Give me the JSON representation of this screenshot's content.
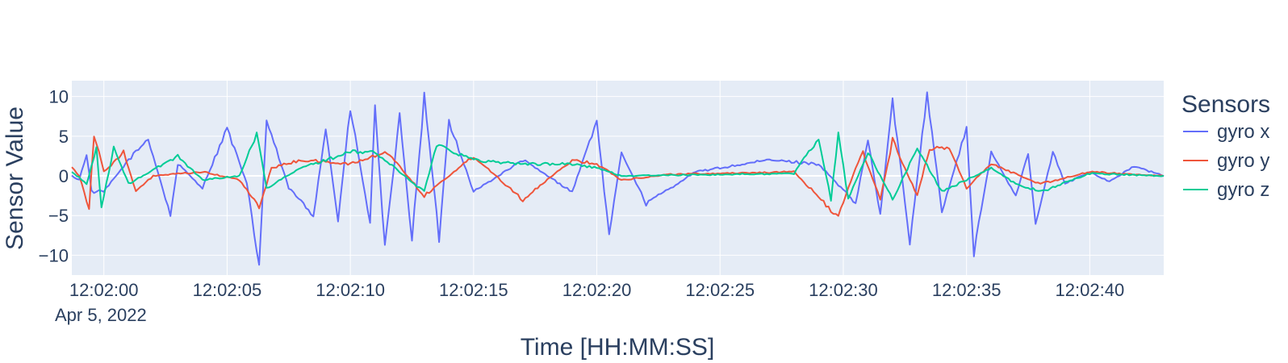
{
  "chart_data": {
    "type": "line",
    "xlabel": "Time [HH:MM:SS]",
    "ylabel": "Sensor Value",
    "date_label": "Apr 5, 2022",
    "x_ticks": [
      "12:02:00",
      "12:02:05",
      "12:02:10",
      "12:02:15",
      "12:02:20",
      "12:02:25",
      "12:02:30",
      "12:02:35",
      "12:02:40"
    ],
    "y_ticks": [
      "10",
      "5",
      "0",
      "−5",
      "−10"
    ],
    "xlim": [
      "12:01:58.7",
      "12:02:43"
    ],
    "ylim": [
      -12.5,
      12
    ],
    "grid": true,
    "legend": {
      "title": "Sensors",
      "position": "right"
    },
    "colors": {
      "gyro x": "#636efa",
      "gyro y": "#ef553b",
      "gyro z": "#00cc96",
      "plot_bg": "#e5ecf6"
    },
    "sample_interval_s": 0.1,
    "series": [
      {
        "name": "gyro x",
        "keypoints": [
          [
            "12:01:58.7",
            0.0
          ],
          [
            "12:01:59.0",
            -0.5
          ],
          [
            "12:01:59.3",
            2.8
          ],
          [
            "12:01:59.5",
            -2.0
          ],
          [
            "12:02:00.0",
            -2.0
          ],
          [
            "12:02:01.0",
            2.0
          ],
          [
            "12:02:01.8",
            4.7
          ],
          [
            "12:02:02.7",
            -5.0
          ],
          [
            "12:02:03.0",
            1.5
          ],
          [
            "12:02:04.0",
            -1.5
          ],
          [
            "12:02:05.0",
            6.0
          ],
          [
            "12:02:05.8",
            -1.0
          ],
          [
            "12:02:06.3",
            -11.3
          ],
          [
            "12:02:06.6",
            7.0
          ],
          [
            "12:02:07.5",
            -1.5
          ],
          [
            "12:02:08.5",
            -5.0
          ],
          [
            "12:02:09.0",
            6.0
          ],
          [
            "12:02:09.5",
            -5.6
          ],
          [
            "12:02:10.0",
            8.5
          ],
          [
            "12:02:10.8",
            -6.0
          ],
          [
            "12:02:11.0",
            8.9
          ],
          [
            "12:02:11.4",
            -9.2
          ],
          [
            "12:02:12.0",
            7.5
          ],
          [
            "12:02:12.5",
            -8.0
          ],
          [
            "12:02:13.0",
            10.0
          ],
          [
            "12:02:13.6",
            -7.9
          ],
          [
            "12:02:14.0",
            7.0
          ],
          [
            "12:02:15.0",
            -2.0
          ],
          [
            "12:02:17.0",
            2.0
          ],
          [
            "12:02:19.0",
            -2.0
          ],
          [
            "12:02:20.0",
            7.0
          ],
          [
            "12:02:20.5",
            -7.7
          ],
          [
            "12:02:21.0",
            3.0
          ],
          [
            "12:02:22.0",
            -3.5
          ],
          [
            "12:02:24.0",
            0.5
          ],
          [
            "12:02:27.0",
            2.0
          ],
          [
            "12:02:29.0",
            1.5
          ],
          [
            "12:02:30.5",
            -3.5
          ],
          [
            "12:02:31.0",
            4.5
          ],
          [
            "12:02:31.5",
            -4.9
          ],
          [
            "12:02:32.0",
            9.5
          ],
          [
            "12:02:32.7",
            -8.4
          ],
          [
            "12:02:33.4",
            10.5
          ],
          [
            "12:02:34.0",
            -4.5
          ],
          [
            "12:02:35.0",
            6.0
          ],
          [
            "12:02:35.3",
            -9.8
          ],
          [
            "12:02:36.0",
            3.0
          ],
          [
            "12:02:37.0",
            -2.5
          ],
          [
            "12:02:37.5",
            3.0
          ],
          [
            "12:02:37.8",
            -6.2
          ],
          [
            "12:02:38.5",
            3.0
          ],
          [
            "12:02:39.0",
            -1.0
          ],
          [
            "12:02:40.0",
            0.5
          ],
          [
            "12:02:40.8",
            -0.7
          ],
          [
            "12:02:41.8",
            1.2
          ],
          [
            "12:02:43.0",
            0.0
          ]
        ]
      },
      {
        "name": "gyro y",
        "keypoints": [
          [
            "12:01:58.7",
            1.2
          ],
          [
            "12:01:59.0",
            0.0
          ],
          [
            "12:01:59.4",
            -4.0
          ],
          [
            "12:01:59.6",
            5.2
          ],
          [
            "12:02:00.0",
            0.5
          ],
          [
            "12:02:00.8",
            3.0
          ],
          [
            "12:02:01.3",
            -2.0
          ],
          [
            "12:02:02.0",
            0.0
          ],
          [
            "12:02:04.0",
            0.5
          ],
          [
            "12:02:05.5",
            -0.5
          ],
          [
            "12:02:06.3",
            -4.0
          ],
          [
            "12:02:06.8",
            1.0
          ],
          [
            "12:02:08.0",
            2.0
          ],
          [
            "12:02:10.0",
            1.5
          ],
          [
            "12:02:11.5",
            3.0
          ],
          [
            "12:02:13.0",
            -2.5
          ],
          [
            "12:02:15.0",
            2.5
          ],
          [
            "12:02:17.0",
            -3.0
          ],
          [
            "12:02:19.0",
            2.0
          ],
          [
            "12:02:20.0",
            1.5
          ],
          [
            "12:02:21.0",
            -0.5
          ],
          [
            "12:02:23.0",
            0.2
          ],
          [
            "12:02:28.0",
            0.5
          ],
          [
            "12:02:29.8",
            -5.2
          ],
          [
            "12:02:30.5",
            1.0
          ],
          [
            "12:02:30.8",
            3.0
          ],
          [
            "12:02:31.5",
            -3.0
          ],
          [
            "12:02:32.0",
            4.5
          ],
          [
            "12:02:33.0",
            -2.5
          ],
          [
            "12:02:33.5",
            3.5
          ],
          [
            "12:02:34.3",
            3.5
          ],
          [
            "12:02:35.0",
            -1.5
          ],
          [
            "12:02:36.0",
            1.5
          ],
          [
            "12:02:38.0",
            -1.0
          ],
          [
            "12:02:40.0",
            0.5
          ],
          [
            "12:02:43.0",
            0.0
          ]
        ]
      },
      {
        "name": "gyro z",
        "keypoints": [
          [
            "12:01:58.7",
            0.5
          ],
          [
            "12:01:59.3",
            -1.0
          ],
          [
            "12:01:59.7",
            3.5
          ],
          [
            "12:01:59.9",
            -4.0
          ],
          [
            "12:02:00.4",
            3.5
          ],
          [
            "12:02:01.0",
            -1.0
          ],
          [
            "12:02:03.0",
            2.5
          ],
          [
            "12:02:04.0",
            -0.5
          ],
          [
            "12:02:05.5",
            0.0
          ],
          [
            "12:02:06.2",
            5.4
          ],
          [
            "12:02:06.6",
            -1.5
          ],
          [
            "12:02:08.0",
            1.0
          ],
          [
            "12:02:10.0",
            3.0
          ],
          [
            "12:02:11.0",
            3.0
          ],
          [
            "12:02:13.0",
            -2.0
          ],
          [
            "12:02:13.5",
            4.0
          ],
          [
            "12:02:15.0",
            2.0
          ],
          [
            "12:02:17.0",
            1.5
          ],
          [
            "12:02:19.0",
            1.5
          ],
          [
            "12:02:20.0",
            1.0
          ],
          [
            "12:02:21.0",
            0.0
          ],
          [
            "12:02:28.0",
            0.3
          ],
          [
            "12:02:29.0",
            4.8
          ],
          [
            "12:02:29.5",
            -3.0
          ],
          [
            "12:02:29.8",
            5.5
          ],
          [
            "12:02:30.2",
            -3.0
          ],
          [
            "12:02:31.0",
            3.0
          ],
          [
            "12:02:32.0",
            -3.0
          ],
          [
            "12:02:33.0",
            3.5
          ],
          [
            "12:02:34.0",
            -2.0
          ],
          [
            "12:02:36.0",
            1.0
          ],
          [
            "12:02:37.0",
            -1.0
          ],
          [
            "12:02:38.0",
            -2.0
          ],
          [
            "12:02:40.0",
            0.3
          ],
          [
            "12:02:43.0",
            0.0
          ]
        ]
      }
    ]
  }
}
